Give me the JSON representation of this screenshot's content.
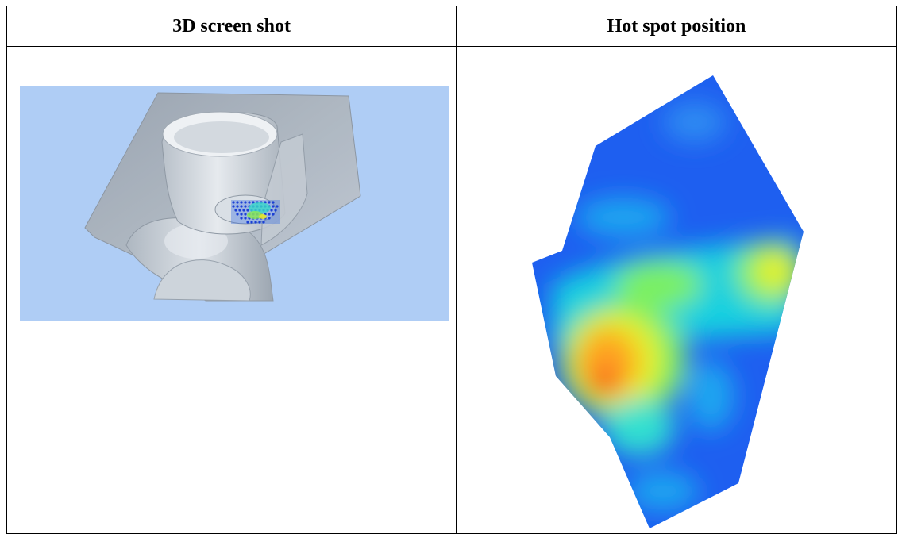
{
  "table": {
    "headers": [
      "3D screen shot",
      "Hot spot position"
    ]
  },
  "figures": {
    "left": {
      "description_icon": "3d-model-icon",
      "background_color": "#afcdf5"
    },
    "right": {
      "description_icon": "heatmap-icon",
      "palette": [
        "#1e5ff0",
        "#1aa6f0",
        "#18e0d8",
        "#7cf060",
        "#e8f028",
        "#ffa020",
        "#f52818"
      ]
    }
  }
}
